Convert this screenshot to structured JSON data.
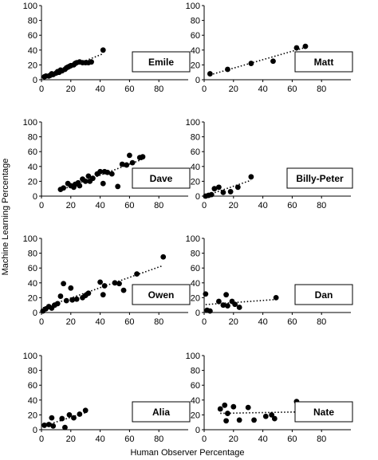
{
  "figure": {
    "ylabel": "Machine Learning Percentage",
    "xlabel": "Human Observer Percentage"
  },
  "chart_data": [
    {
      "type": "scatter",
      "series_label": "Emile",
      "xlim": [
        0,
        100
      ],
      "ylim": [
        0,
        100
      ],
      "xticks": [
        0,
        20,
        40,
        60,
        80
      ],
      "yticks": [
        0,
        20,
        40,
        60,
        80,
        100
      ],
      "trendline": "linear, dotted",
      "points": [
        [
          2,
          4
        ],
        [
          3,
          5
        ],
        [
          5,
          5
        ],
        [
          6,
          6
        ],
        [
          7,
          8
        ],
        [
          8,
          7
        ],
        [
          10,
          9
        ],
        [
          11,
          11
        ],
        [
          12,
          10
        ],
        [
          13,
          13
        ],
        [
          14,
          12
        ],
        [
          16,
          14
        ],
        [
          17,
          16
        ],
        [
          18,
          17
        ],
        [
          19,
          18
        ],
        [
          20,
          19
        ],
        [
          22,
          20
        ],
        [
          23,
          22
        ],
        [
          24,
          23
        ],
        [
          26,
          24
        ],
        [
          28,
          23
        ],
        [
          30,
          23
        ],
        [
          32,
          23
        ],
        [
          34,
          24
        ],
        [
          42,
          40
        ]
      ]
    },
    {
      "type": "scatter",
      "series_label": "Matt",
      "xlim": [
        0,
        100
      ],
      "ylim": [
        0,
        100
      ],
      "xticks": [
        0,
        20,
        40,
        60,
        80
      ],
      "yticks": [
        0,
        20,
        40,
        60,
        80,
        100
      ],
      "trendline": "linear, dotted",
      "points": [
        [
          4,
          8
        ],
        [
          16,
          14
        ],
        [
          32,
          22
        ],
        [
          47,
          25
        ],
        [
          63,
          43
        ],
        [
          69,
          45
        ]
      ]
    },
    {
      "type": "scatter",
      "series_label": "Dave",
      "xlim": [
        0,
        100
      ],
      "ylim": [
        0,
        100
      ],
      "xticks": [
        0,
        20,
        40,
        60,
        80
      ],
      "yticks": [
        0,
        20,
        40,
        60,
        80,
        100
      ],
      "trendline": "linear, dotted",
      "points": [
        [
          13,
          9
        ],
        [
          15,
          11
        ],
        [
          18,
          17
        ],
        [
          20,
          14
        ],
        [
          22,
          12
        ],
        [
          23,
          16
        ],
        [
          25,
          18
        ],
        [
          26,
          14
        ],
        [
          28,
          23
        ],
        [
          30,
          20
        ],
        [
          32,
          27
        ],
        [
          33,
          20
        ],
        [
          35,
          24
        ],
        [
          38,
          30
        ],
        [
          40,
          33
        ],
        [
          42,
          17
        ],
        [
          43,
          33
        ],
        [
          45,
          32
        ],
        [
          48,
          30
        ],
        [
          52,
          13
        ],
        [
          55,
          43
        ],
        [
          58,
          42
        ],
        [
          60,
          55
        ],
        [
          62,
          45
        ],
        [
          67,
          52
        ],
        [
          69,
          53
        ]
      ]
    },
    {
      "type": "scatter",
      "series_label": "Billy-Peter",
      "xlim": [
        0,
        100
      ],
      "ylim": [
        0,
        100
      ],
      "xticks": [
        0,
        20,
        40,
        60,
        80
      ],
      "yticks": [
        0,
        20,
        40,
        60,
        80,
        100
      ],
      "trendline": "linear, dotted",
      "points": [
        [
          1,
          0
        ],
        [
          3,
          1
        ],
        [
          5,
          2
        ],
        [
          7,
          10
        ],
        [
          10,
          12
        ],
        [
          13,
          5
        ],
        [
          18,
          6
        ],
        [
          23,
          12
        ],
        [
          32,
          26
        ]
      ]
    },
    {
      "type": "scatter",
      "series_label": "Owen",
      "xlim": [
        0,
        100
      ],
      "ylim": [
        0,
        100
      ],
      "xticks": [
        0,
        20,
        40,
        60,
        80
      ],
      "yticks": [
        0,
        20,
        40,
        60,
        80,
        100
      ],
      "trendline": "linear, dotted",
      "points": [
        [
          1,
          2
        ],
        [
          3,
          5
        ],
        [
          5,
          8
        ],
        [
          7,
          6
        ],
        [
          9,
          10
        ],
        [
          11,
          12
        ],
        [
          13,
          22
        ],
        [
          15,
          39
        ],
        [
          17,
          16
        ],
        [
          20,
          33
        ],
        [
          21,
          17
        ],
        [
          24,
          18
        ],
        [
          28,
          20
        ],
        [
          30,
          23
        ],
        [
          32,
          26
        ],
        [
          40,
          41
        ],
        [
          42,
          24
        ],
        [
          43,
          36
        ],
        [
          50,
          40
        ],
        [
          53,
          39
        ],
        [
          56,
          30
        ],
        [
          65,
          52
        ],
        [
          83,
          75
        ]
      ]
    },
    {
      "type": "scatter",
      "series_label": "Dan",
      "xlim": [
        0,
        100
      ],
      "ylim": [
        0,
        100
      ],
      "xticks": [
        0,
        20,
        40,
        60,
        80
      ],
      "yticks": [
        0,
        20,
        40,
        60,
        80,
        100
      ],
      "trendline": "linear, dotted",
      "points": [
        [
          1,
          25
        ],
        [
          2,
          3
        ],
        [
          4,
          2
        ],
        [
          10,
          15
        ],
        [
          13,
          10
        ],
        [
          15,
          24
        ],
        [
          16,
          9
        ],
        [
          19,
          15
        ],
        [
          21,
          11
        ],
        [
          24,
          7
        ],
        [
          49,
          20
        ]
      ]
    },
    {
      "type": "scatter",
      "series_label": "Alia",
      "xlim": [
        0,
        100
      ],
      "ylim": [
        0,
        100
      ],
      "xticks": [
        0,
        20,
        40,
        60,
        80
      ],
      "yticks": [
        0,
        20,
        40,
        60,
        80,
        100
      ],
      "trendline": "linear, dotted",
      "points": [
        [
          2,
          6
        ],
        [
          5,
          7
        ],
        [
          7,
          16
        ],
        [
          8,
          5
        ],
        [
          14,
          15
        ],
        [
          16,
          3
        ],
        [
          19,
          20
        ],
        [
          22,
          16
        ],
        [
          26,
          21
        ],
        [
          30,
          26
        ]
      ]
    },
    {
      "type": "scatter",
      "series_label": "Nate",
      "xlim": [
        0,
        100
      ],
      "ylim": [
        0,
        100
      ],
      "xticks": [
        0,
        20,
        40,
        60,
        80
      ],
      "yticks": [
        0,
        20,
        40,
        60,
        80,
        100
      ],
      "trendline": "linear, dotted",
      "points": [
        [
          11,
          28
        ],
        [
          14,
          33
        ],
        [
          15,
          12
        ],
        [
          16,
          22
        ],
        [
          20,
          31
        ],
        [
          24,
          13
        ],
        [
          30,
          30
        ],
        [
          34,
          13
        ],
        [
          42,
          18
        ],
        [
          46,
          20
        ],
        [
          48,
          15
        ],
        [
          63,
          38
        ]
      ]
    }
  ]
}
